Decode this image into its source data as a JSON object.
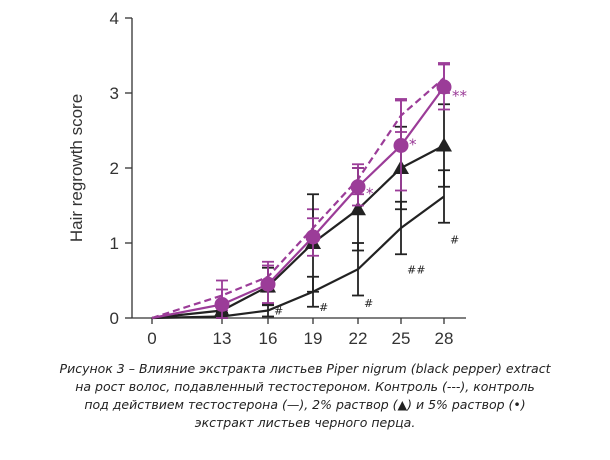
{
  "chart_data": {
    "type": "line",
    "title": "",
    "xlabel": "",
    "ylabel": "Hair regrowth score",
    "categories": [
      "0",
      "13",
      "16",
      "19",
      "22",
      "25",
      "28"
    ],
    "x": [
      0,
      13,
      16,
      19,
      22,
      25,
      28
    ],
    "ylim": [
      0,
      4
    ],
    "yticks": [
      "0",
      "1",
      "2",
      "3",
      "4"
    ],
    "grid": false,
    "legend": "none",
    "series": [
      {
        "marker": "none",
        "line": "dashed",
        "color": "#9b3c98",
        "values": [
          0,
          0.3,
          0.55,
          1.2,
          1.85,
          2.7,
          3.2
        ],
        "errors": [
          0,
          0.2,
          0.2,
          0.25,
          0.2,
          0.22,
          0.2
        ]
      },
      {
        "marker": "none",
        "line": "solid",
        "color": "#222222",
        "values": [
          0,
          0.02,
          0.1,
          0.35,
          0.65,
          1.2,
          1.62
        ],
        "errors": [
          0,
          0.05,
          0.08,
          0.2,
          0.35,
          0.35,
          0.35
        ]
      },
      {
        "marker": "triangle",
        "line": "solid",
        "color": "#222222",
        "values": [
          0,
          0.1,
          0.42,
          1.0,
          1.45,
          2.0,
          2.3
        ],
        "errors": [
          0,
          0.1,
          0.25,
          0.65,
          0.55,
          0.55,
          0.55
        ]
      },
      {
        "marker": "circle",
        "line": "solid",
        "color": "#9b3c98",
        "values": [
          0,
          0.18,
          0.45,
          1.08,
          1.75,
          2.3,
          3.08
        ],
        "errors": [
          0,
          0.2,
          0.25,
          0.25,
          0.25,
          0.6,
          0.3
        ]
      }
    ],
    "annotations": [
      {
        "text": "#",
        "x": 16,
        "y": 0.1
      },
      {
        "text": "#",
        "x": 19,
        "y": 0.15
      },
      {
        "text": "#",
        "x": 22,
        "y": 0.2
      },
      {
        "text": "##",
        "x": 25,
        "y": 0.65
      },
      {
        "text": "#",
        "x": 28,
        "y": 1.05
      },
      {
        "text": "*",
        "x": 22,
        "y": 1.65
      },
      {
        "text": "*",
        "x": 25,
        "y": 2.3
      },
      {
        "text": "**",
        "x": 28,
        "y": 2.95
      }
    ]
  },
  "caption": {
    "lines": [
      "Рисунок 3 – Влияние экстракта листьев Piper nigrum (black pepper) extract",
      "на рост волос, подавленный тестостероном. Контроль (---), контроль",
      "под действием тестостерона (—), 2% раствор (▲) и 5% раствор (•)",
      "экстракт листьев черного перца."
    ]
  }
}
